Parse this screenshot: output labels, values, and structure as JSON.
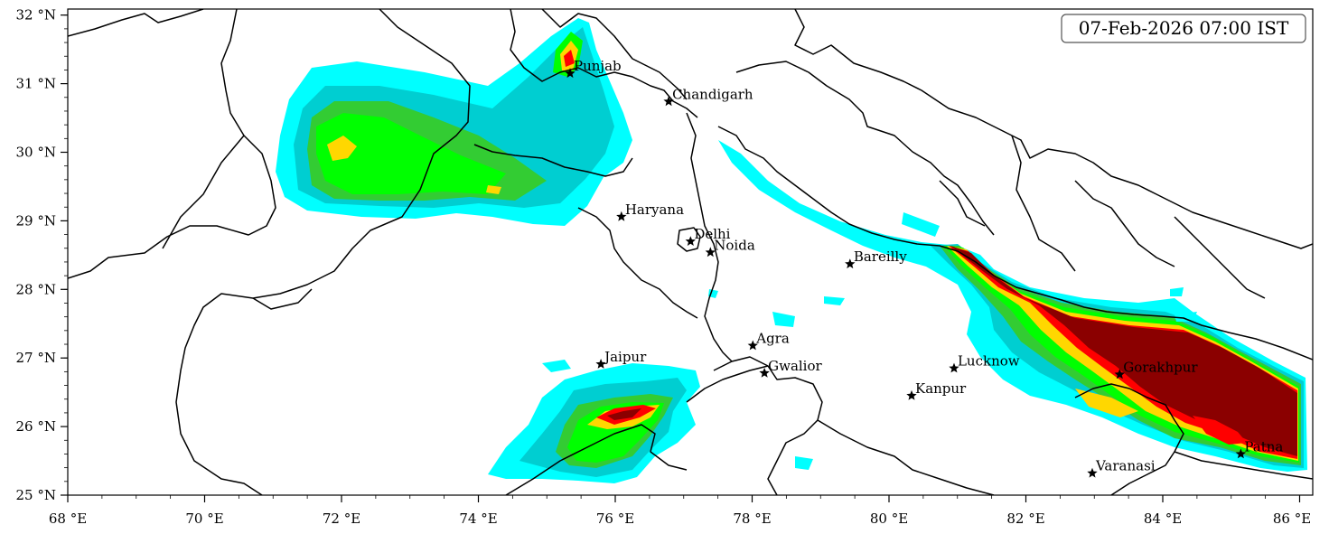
{
  "timestamp": "07-Feb-2026 07:00 IST",
  "colors": {
    "cyan": "#00ffff",
    "turquoise": "#00ced1",
    "medgreen": "#33cc33",
    "lime": "#00ff00",
    "gold": "#ffd700",
    "red": "#ff0000",
    "darkred": "#8b0000",
    "border": "#000000"
  },
  "axes": {
    "x_ticks": [
      "68 °E",
      "70 °E",
      "72 °E",
      "74 °E",
      "76 °E",
      "78 °E",
      "80 °E",
      "82 °E",
      "84 °E",
      "86 °E"
    ],
    "y_ticks": [
      "25 °N",
      "26 °N",
      "27 °N",
      "28 °N",
      "29 °N",
      "30 °N",
      "31 °N",
      "32 °N"
    ]
  },
  "cities": [
    {
      "name": "Punjab"
    },
    {
      "name": "Chandigarh"
    },
    {
      "name": "Haryana"
    },
    {
      "name": "Delhi"
    },
    {
      "name": "Noida"
    },
    {
      "name": "Bareilly"
    },
    {
      "name": "Agra"
    },
    {
      "name": "Jaipur"
    },
    {
      "name": "Gwalior"
    },
    {
      "name": "Lucknow"
    },
    {
      "name": "Kanpur"
    },
    {
      "name": "Gorakhpur"
    },
    {
      "name": "Patna"
    },
    {
      "name": "Varanasi"
    }
  ]
}
